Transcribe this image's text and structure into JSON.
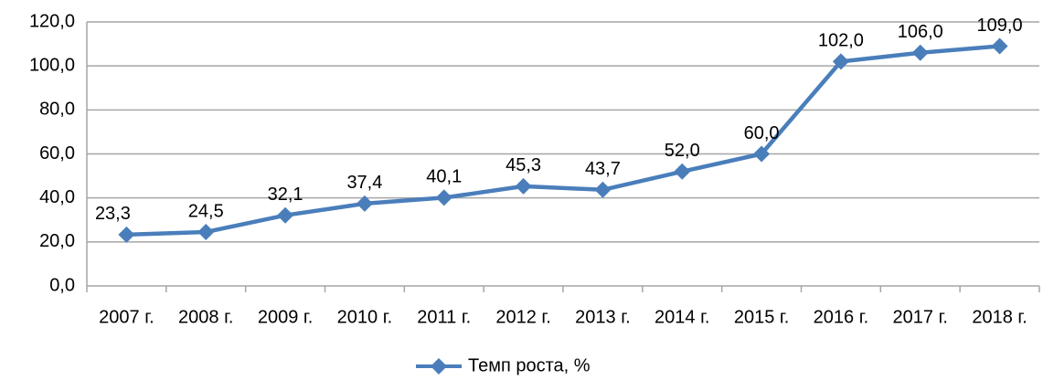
{
  "chart_data": {
    "type": "line",
    "categories": [
      "2007 г.",
      "2008 г.",
      "2009 г.",
      "2010 г.",
      "2011 г.",
      "2012 г.",
      "2013 г.",
      "2014 г.",
      "2015 г.",
      "2016 г.",
      "2017 г.",
      "2018 г."
    ],
    "series": [
      {
        "name": "Темп роста, %",
        "color": "#4a7ebb",
        "values": [
          23.3,
          24.5,
          32.1,
          37.4,
          40.1,
          45.3,
          43.7,
          52.0,
          60.0,
          102.0,
          106.0,
          109.0
        ],
        "value_labels": [
          "23,3",
          "24,5",
          "32,1",
          "37,4",
          "40,1",
          "45,3",
          "43,7",
          "52,0",
          "60,0",
          "102,0",
          "106,0",
          "109,0"
        ]
      }
    ],
    "ylim": [
      0,
      120
    ],
    "yticks": [
      {
        "value": 0,
        "label": "0,0"
      },
      {
        "value": 20,
        "label": "20,0"
      },
      {
        "value": 40,
        "label": "40,0"
      },
      {
        "value": 60,
        "label": "60,0"
      },
      {
        "value": 80,
        "label": "80,0"
      },
      {
        "value": 100,
        "label": "100,0"
      },
      {
        "value": 120,
        "label": "120,0"
      }
    ],
    "grid": true,
    "legend": "bottom"
  }
}
